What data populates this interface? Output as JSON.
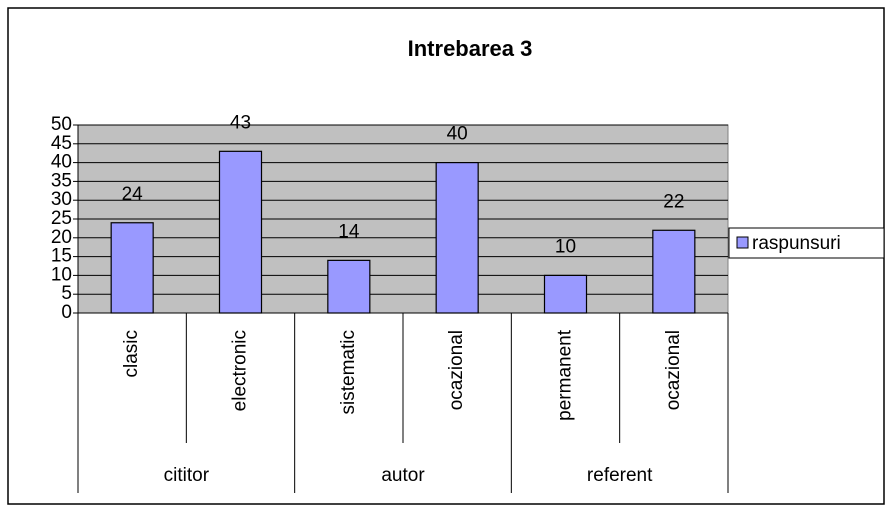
{
  "chart_data": {
    "type": "bar",
    "title": "Intrebarea 3",
    "categories": [
      "clasic",
      "electronic",
      "sistematic",
      "ocazional",
      "permanent",
      "ocazional"
    ],
    "groups": [
      "cititor",
      "autor",
      "referent"
    ],
    "series": [
      {
        "name": "raspunsuri",
        "color": "#9999ff",
        "values": [
          24,
          43,
          14,
          40,
          10,
          22
        ]
      }
    ],
    "ylim": [
      0,
      50
    ],
    "yticks": [
      0,
      5,
      10,
      15,
      20,
      25,
      30,
      35,
      40,
      45,
      50
    ],
    "grid": true,
    "legend": "right",
    "plot_background": "#c0c0c0"
  }
}
